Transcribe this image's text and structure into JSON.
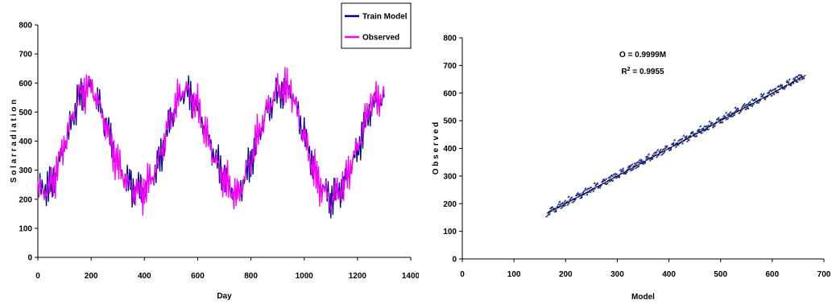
{
  "chart_data": [
    {
      "type": "line",
      "title": "",
      "xlabel": "Day",
      "ylabel": "S o l a r  r a d i a t i o n",
      "xlim": [
        0,
        1400
      ],
      "ylim": [
        0,
        800
      ],
      "xticks": [
        "0",
        "200",
        "400",
        "600",
        "800",
        "1000",
        "1200",
        "1400"
      ],
      "yticks": [
        "0",
        "100",
        "200",
        "300",
        "400",
        "500",
        "600",
        "700",
        "800"
      ],
      "grid": false,
      "legend_position": "top-right",
      "legend": [
        "Train Model",
        "Observed"
      ],
      "colors": {
        "Train Model": "#000080",
        "Observed": "#ff00ff"
      },
      "series": [
        {
          "name": "Train Model",
          "x": [
            0,
            50,
            100,
            150,
            200,
            250,
            300,
            350,
            400,
            450,
            500,
            550,
            600,
            650,
            700,
            750,
            800,
            850,
            900,
            950,
            1000,
            1050,
            1100,
            1150,
            1200,
            1250,
            1300
          ],
          "values": [
            230,
            245,
            380,
            540,
            590,
            480,
            320,
            240,
            230,
            310,
            480,
            580,
            520,
            380,
            270,
            210,
            330,
            480,
            570,
            580,
            420,
            270,
            200,
            250,
            370,
            520,
            550
          ]
        },
        {
          "name": "Observed",
          "x": [
            0,
            50,
            100,
            150,
            200,
            250,
            300,
            350,
            400,
            450,
            500,
            550,
            600,
            650,
            700,
            750,
            800,
            850,
            900,
            950,
            1000,
            1050,
            1100,
            1150,
            1200,
            1250,
            1300
          ],
          "values": [
            225,
            240,
            390,
            550,
            600,
            470,
            315,
            235,
            225,
            320,
            490,
            590,
            515,
            370,
            265,
            205,
            340,
            490,
            580,
            575,
            410,
            260,
            195,
            255,
            380,
            530,
            560
          ]
        }
      ]
    },
    {
      "type": "scatter",
      "title": "",
      "xlabel": "Model",
      "ylabel": "O b s e r v e d",
      "xlim": [
        0,
        700
      ],
      "ylim": [
        0,
        800
      ],
      "xticks": [
        "0",
        "100",
        "200",
        "300",
        "400",
        "500",
        "600",
        "700"
      ],
      "yticks": [
        "0",
        "100",
        "200",
        "300",
        "400",
        "500",
        "600",
        "700",
        "800"
      ],
      "grid": false,
      "annotation": {
        "eq": "O = 0.9999M",
        "r2_base": "R",
        "r2_sup": "2",
        "r2_rest": " = 0.9955"
      },
      "marker_color": "#1f2f8f",
      "trendline": {
        "slope": 0.9999,
        "intercept": 0
      },
      "points_x": [
        165,
        170,
        180,
        190,
        200,
        210,
        220,
        230,
        240,
        250,
        260,
        270,
        280,
        290,
        300,
        310,
        320,
        330,
        340,
        350,
        360,
        370,
        380,
        390,
        400,
        410,
        420,
        430,
        440,
        450,
        460,
        470,
        480,
        490,
        500,
        510,
        520,
        530,
        540,
        550,
        560,
        570,
        580,
        590,
        600,
        610,
        620,
        630,
        640,
        650,
        660,
        665,
        170,
        200,
        230,
        260,
        290,
        320,
        350,
        380,
        410,
        440,
        470,
        500,
        530,
        560,
        590,
        620,
        650,
        165,
        245
      ],
      "points_y": [
        165,
        175,
        185,
        195,
        205,
        205,
        225,
        230,
        240,
        255,
        265,
        270,
        285,
        290,
        305,
        310,
        325,
        325,
        340,
        355,
        360,
        375,
        380,
        395,
        405,
        410,
        425,
        430,
        440,
        455,
        460,
        475,
        480,
        495,
        505,
        510,
        525,
        530,
        540,
        555,
        560,
        575,
        580,
        590,
        605,
        610,
        625,
        630,
        640,
        655,
        660,
        678,
        215,
        195,
        240,
        255,
        300,
        315,
        360,
        375,
        420,
        435,
        480,
        495,
        540,
        555,
        600,
        615,
        660,
        140,
        325
      ]
    }
  ]
}
